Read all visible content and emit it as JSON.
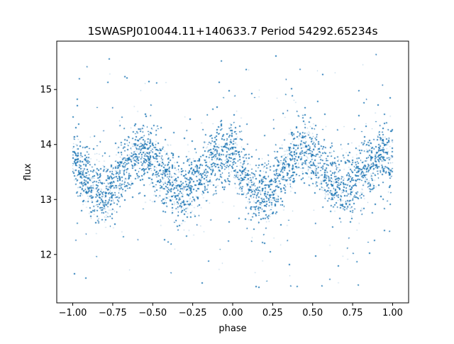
{
  "chart_data": {
    "type": "scatter",
    "title": "1SWASPJ010044.11+140633.7 Period 54292.65234s",
    "xlabel": "phase",
    "ylabel": "flux",
    "xlim": [
      -1.1,
      1.1
    ],
    "ylim": [
      11.12,
      15.88
    ],
    "x_ticks": [
      -1.0,
      -0.75,
      -0.5,
      -0.25,
      0.0,
      0.25,
      0.5,
      0.75,
      1.0
    ],
    "x_tick_labels": [
      "−1.00",
      "−0.75",
      "−0.50",
      "−0.25",
      "0.00",
      "0.25",
      "0.50",
      "0.75",
      "1.00"
    ],
    "y_ticks": [
      12,
      13,
      14,
      15
    ],
    "y_tick_labels": [
      "12",
      "13",
      "14",
      "15"
    ],
    "grid": false,
    "legend": "none",
    "series": [
      {
        "marker_color": "#1f77b4",
        "x_range": [
          -1.0,
          1.0
        ],
        "curve_points": [
          {
            "x": -1.0,
            "y": 13.62
          },
          {
            "x": -0.82,
            "y": 13.12
          },
          {
            "x": -0.57,
            "y": 13.88
          },
          {
            "x": -0.32,
            "y": 13.18
          },
          {
            "x": -0.05,
            "y": 13.85
          },
          {
            "x": 0.18,
            "y": 13.1
          },
          {
            "x": 0.43,
            "y": 13.9
          },
          {
            "x": 0.68,
            "y": 13.2
          },
          {
            "x": 0.95,
            "y": 13.78
          },
          {
            "x": 1.0,
            "y": 13.7
          }
        ],
        "core_scatter_sd": 0.28,
        "outlier_range": [
          11.35,
          15.65
        ]
      }
    ]
  }
}
